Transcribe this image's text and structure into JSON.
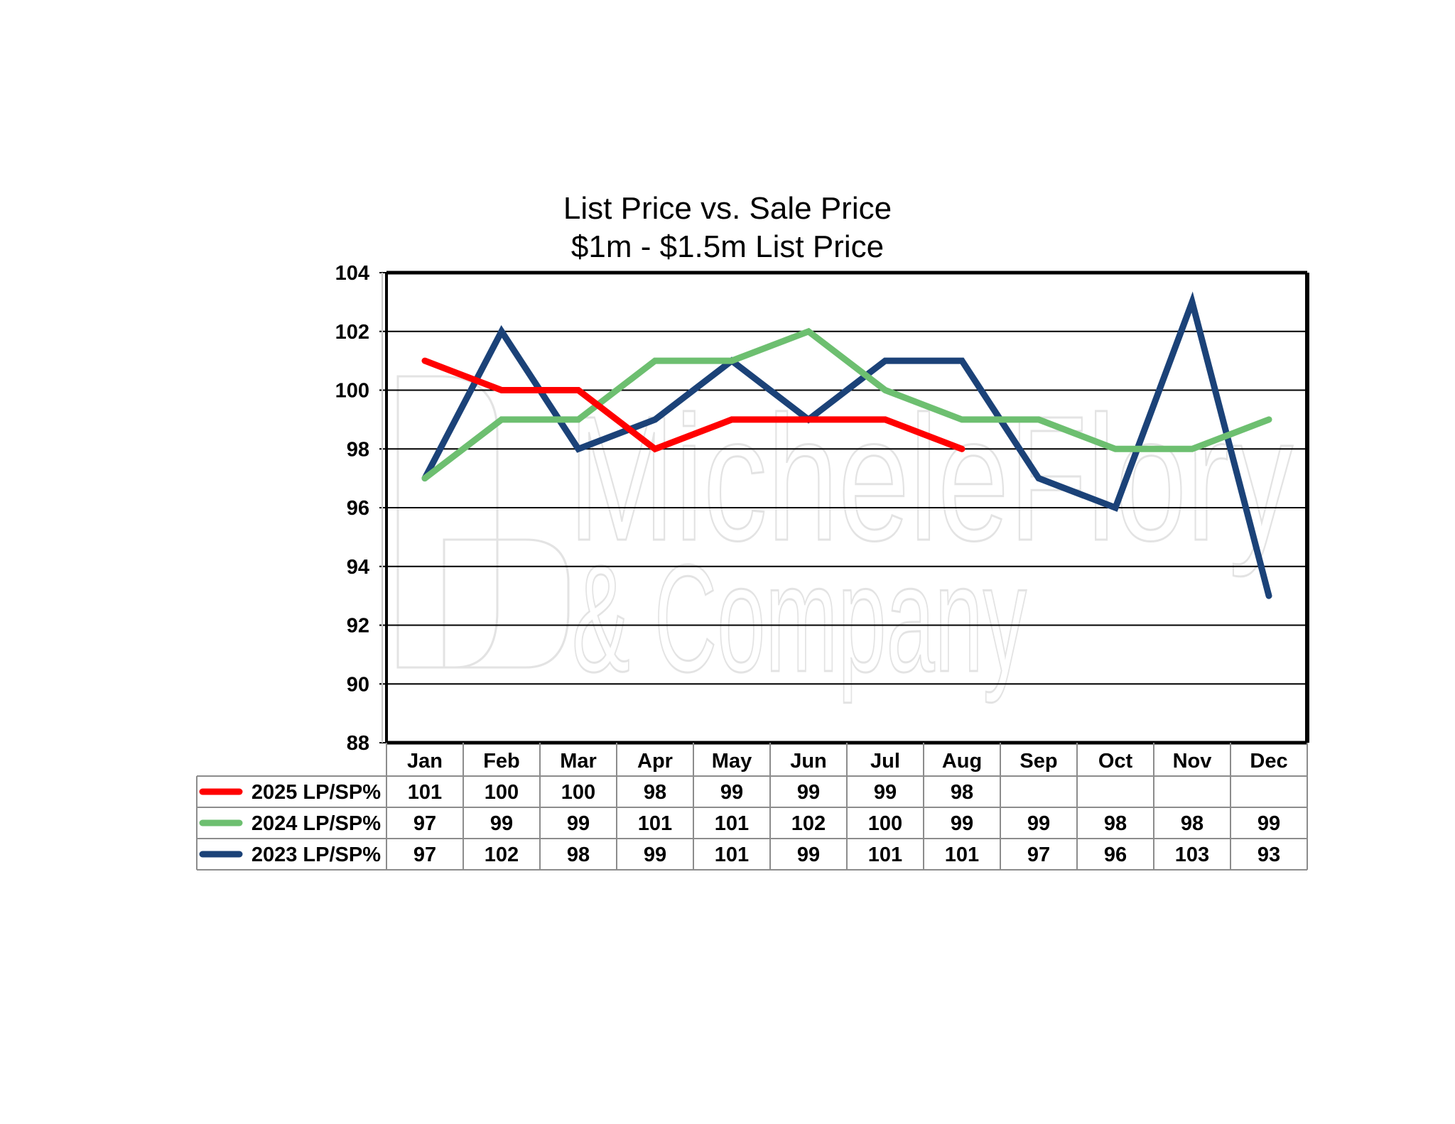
{
  "chart_data": {
    "type": "line",
    "title": "List Price vs. Sale Price",
    "subtitle": "$1m - $1.5m List Price",
    "categories": [
      "Jan",
      "Feb",
      "Mar",
      "Apr",
      "May",
      "Jun",
      "Jul",
      "Aug",
      "Sep",
      "Oct",
      "Nov",
      "Dec"
    ],
    "ylim": [
      88,
      104
    ],
    "yticks": [
      88,
      90,
      92,
      94,
      96,
      98,
      100,
      102,
      104
    ],
    "grid": true,
    "legend": "data-table-left",
    "watermark": [
      "MicheleFlory",
      "& Company"
    ],
    "series": [
      {
        "name": "2025 LP/SP%",
        "color": "#ff0000",
        "values": [
          101,
          100,
          100,
          98,
          99,
          99,
          99,
          98,
          null,
          null,
          null,
          null
        ]
      },
      {
        "name": "2024 LP/SP%",
        "color": "#6dbf70",
        "values": [
          97,
          99,
          99,
          101,
          101,
          102,
          100,
          99,
          99,
          98,
          98,
          99
        ]
      },
      {
        "name": "2023 LP/SP%",
        "color": "#1b4278",
        "values": [
          97,
          102,
          98,
          99,
          101,
          99,
          101,
          101,
          97,
          96,
          103,
          93
        ]
      }
    ]
  }
}
